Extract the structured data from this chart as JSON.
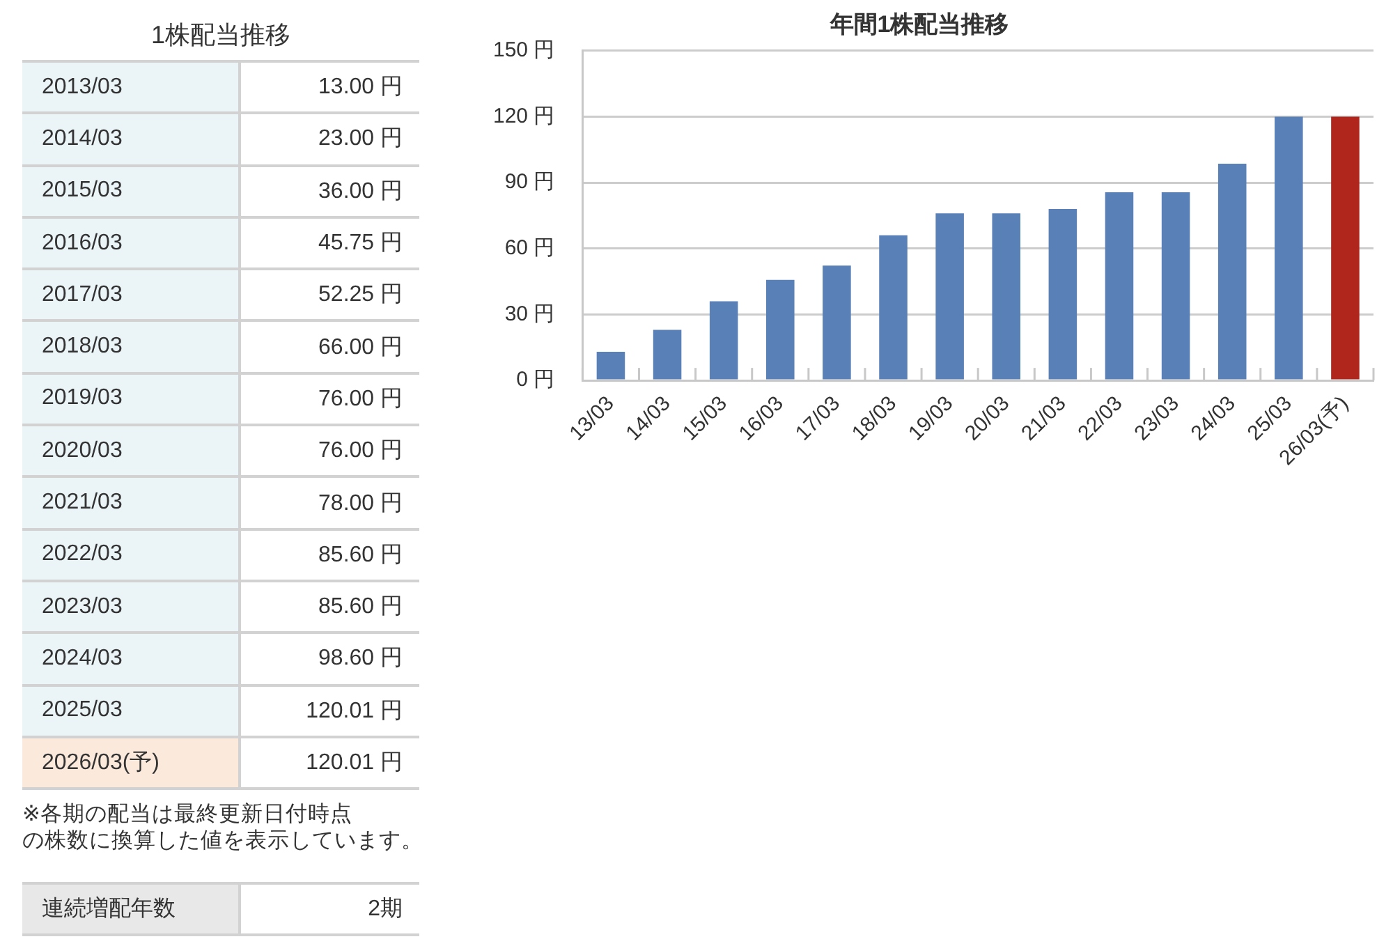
{
  "chart_data": [
    {
      "type": "other",
      "title": "1株配当推移",
      "categories": [
        "2013/03",
        "2014/03",
        "2015/03",
        "2016/03",
        "2017/03",
        "2018/03",
        "2019/03",
        "2020/03",
        "2021/03",
        "2022/03",
        "2023/03",
        "2024/03",
        "2025/03",
        "2026/03(予)"
      ],
      "value_labels": [
        "13.00 円",
        "23.00 円",
        "36.00 円",
        "45.75 円",
        "52.25 円",
        "66.00 円",
        "76.00 円",
        "76.00 円",
        "78.00 円",
        "85.60 円",
        "85.60 円",
        "98.60 円",
        "120.01 円",
        "120.01 円"
      ],
      "colors": [
        "#ebf5f8",
        "#ebf5f8",
        "#ebf5f8",
        "#ebf5f8",
        "#ebf5f8",
        "#ebf5f8",
        "#ebf5f8",
        "#ebf5f8",
        "#ebf5f8",
        "#ebf5f8",
        "#ebf5f8",
        "#ebf5f8",
        "#ebf5f8",
        "#fbe9dc"
      ],
      "annotations": [
        "※各期の配当は最終更新日付時点",
        "の株数に換算した値を表示しています。"
      ]
    },
    {
      "type": "bar",
      "title": "年間1株配当推移",
      "categories": [
        "13/03",
        "14/03",
        "15/03",
        "16/03",
        "17/03",
        "18/03",
        "19/03",
        "20/03",
        "21/03",
        "22/03",
        "23/03",
        "24/03",
        "25/03",
        "26/03(予)"
      ],
      "values": [
        13,
        23,
        36,
        45.75,
        52.25,
        66,
        76,
        76,
        78,
        85.6,
        85.6,
        98.6,
        120.01,
        120.01
      ],
      "colors": [
        "#5a80b8",
        "#5a80b8",
        "#5a80b8",
        "#5a80b8",
        "#5a80b8",
        "#5a80b8",
        "#5a80b8",
        "#5a80b8",
        "#5a80b8",
        "#5a80b8",
        "#5a80b8",
        "#5a80b8",
        "#5a80b8",
        "#b0261c"
      ],
      "ylim": [
        0,
        150
      ],
      "yticks": [
        {
          "value": 0,
          "label": "0 円"
        },
        {
          "value": 30,
          "label": "30 円"
        },
        {
          "value": 60,
          "label": "60 円"
        },
        {
          "value": 90,
          "label": "90 円"
        },
        {
          "value": 120,
          "label": "120 円"
        },
        {
          "value": 150,
          "label": "150 円"
        }
      ],
      "grid": "y"
    },
    {
      "type": "other",
      "categories": [
        "連続増配年数"
      ],
      "value_labels": [
        "2期"
      ],
      "colors": [
        "#e8e8e8"
      ]
    }
  ]
}
